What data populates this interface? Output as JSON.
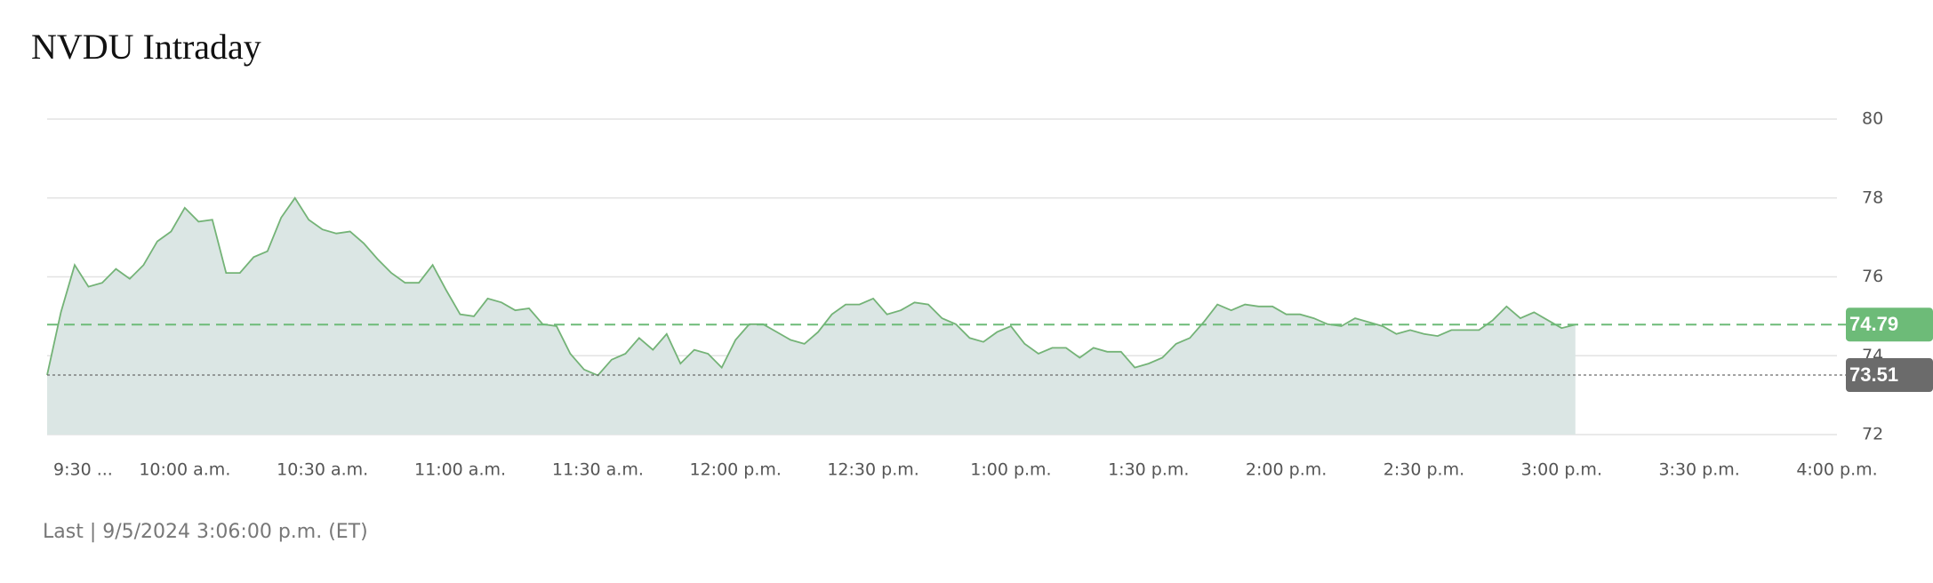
{
  "chart_data": {
    "type": "area",
    "title": "NVDU Intraday",
    "footer": "Last | 9/5/2024 3:06:00 p.m. (ET)",
    "x": [
      "09:30",
      "09:33",
      "09:36",
      "09:39",
      "09:42",
      "09:45",
      "09:48",
      "09:51",
      "09:54",
      "09:57",
      "10:00",
      "10:03",
      "10:06",
      "10:09",
      "10:12",
      "10:15",
      "10:18",
      "10:21",
      "10:24",
      "10:27",
      "10:30",
      "10:33",
      "10:36",
      "10:39",
      "10:42",
      "10:45",
      "10:48",
      "10:51",
      "10:54",
      "10:57",
      "11:00",
      "11:03",
      "11:06",
      "11:09",
      "11:12",
      "11:15",
      "11:18",
      "11:21",
      "11:24",
      "11:27",
      "11:30",
      "11:33",
      "11:36",
      "11:39",
      "11:42",
      "11:45",
      "11:48",
      "11:51",
      "11:54",
      "11:57",
      "12:00",
      "12:03",
      "12:06",
      "12:09",
      "12:12",
      "12:15",
      "12:18",
      "12:21",
      "12:24",
      "12:27",
      "12:30",
      "12:33",
      "12:36",
      "12:39",
      "12:42",
      "12:45",
      "12:48",
      "12:51",
      "12:54",
      "12:57",
      "13:00",
      "13:03",
      "13:06",
      "13:09",
      "13:12",
      "13:15",
      "13:18",
      "13:21",
      "13:24",
      "13:27",
      "13:30",
      "13:33",
      "13:36",
      "13:39",
      "13:42",
      "13:45",
      "13:48",
      "13:51",
      "13:54",
      "13:57",
      "14:00",
      "14:03",
      "14:06",
      "14:09",
      "14:12",
      "14:15",
      "14:18",
      "14:21",
      "14:24",
      "14:27",
      "14:30",
      "14:33",
      "14:36",
      "14:39",
      "14:42",
      "14:45",
      "14:48",
      "14:51",
      "14:54",
      "14:57",
      "15:00",
      "15:03"
    ],
    "series": [
      {
        "name": "NVDU",
        "color": "#74b377",
        "fill": "#dbe6e4",
        "values": [
          73.51,
          75.1,
          76.3,
          75.75,
          75.85,
          76.2,
          75.95,
          76.3,
          76.9,
          77.15,
          77.75,
          77.4,
          77.45,
          76.1,
          76.1,
          76.5,
          76.65,
          77.5,
          78.0,
          77.45,
          77.2,
          77.1,
          77.15,
          76.85,
          76.45,
          76.1,
          75.85,
          75.85,
          76.3,
          75.65,
          75.05,
          75.0,
          75.45,
          75.35,
          75.15,
          75.2,
          74.8,
          74.75,
          74.05,
          73.65,
          73.5,
          73.9,
          74.05,
          74.45,
          74.15,
          74.55,
          73.8,
          74.15,
          74.05,
          73.7,
          74.4,
          74.8,
          74.8,
          74.6,
          74.4,
          74.3,
          74.6,
          75.05,
          75.3,
          75.3,
          75.45,
          75.05,
          75.15,
          75.35,
          75.3,
          74.95,
          74.8,
          74.45,
          74.35,
          74.6,
          74.75,
          74.3,
          74.05,
          74.2,
          74.2,
          73.95,
          74.2,
          74.1,
          74.1,
          73.7,
          73.8,
          73.95,
          74.3,
          74.45,
          74.85,
          75.3,
          75.15,
          75.3,
          75.25,
          75.25,
          75.05,
          75.05,
          74.95,
          74.8,
          74.75,
          74.95,
          74.85,
          74.75,
          74.55,
          74.65,
          74.55,
          74.5,
          74.65,
          74.65,
          74.65,
          74.9,
          75.25,
          74.95,
          75.1,
          74.9,
          74.7,
          74.79
        ]
      }
    ],
    "reference_lines": [
      {
        "value": 74.79,
        "color": "#6dbb78",
        "style": "dashed"
      },
      {
        "value": 73.51,
        "color": "#6b6b6b",
        "style": "dotted"
      }
    ],
    "xlim": [
      "09:30",
      "16:00"
    ],
    "xticks": [
      {
        "value": "09:30",
        "label": "9:30 ..."
      },
      {
        "value": "10:00",
        "label": "10:00 a.m."
      },
      {
        "value": "10:30",
        "label": "10:30 a.m."
      },
      {
        "value": "11:00",
        "label": "11:00 a.m."
      },
      {
        "value": "11:30",
        "label": "11:30 a.m."
      },
      {
        "value": "12:00",
        "label": "12:00 p.m."
      },
      {
        "value": "12:30",
        "label": "12:30 p.m."
      },
      {
        "value": "13:00",
        "label": "1:00 p.m."
      },
      {
        "value": "13:30",
        "label": "1:30 p.m."
      },
      {
        "value": "14:00",
        "label": "2:00 p.m."
      },
      {
        "value": "14:30",
        "label": "2:30 p.m."
      },
      {
        "value": "15:00",
        "label": "3:00 p.m."
      },
      {
        "value": "15:30",
        "label": "3:30 p.m."
      },
      {
        "value": "16:00",
        "label": "4:00 p.m."
      }
    ],
    "ylim": [
      72,
      80
    ],
    "yticks": [
      72,
      74,
      76,
      78,
      80
    ],
    "grid": true
  }
}
